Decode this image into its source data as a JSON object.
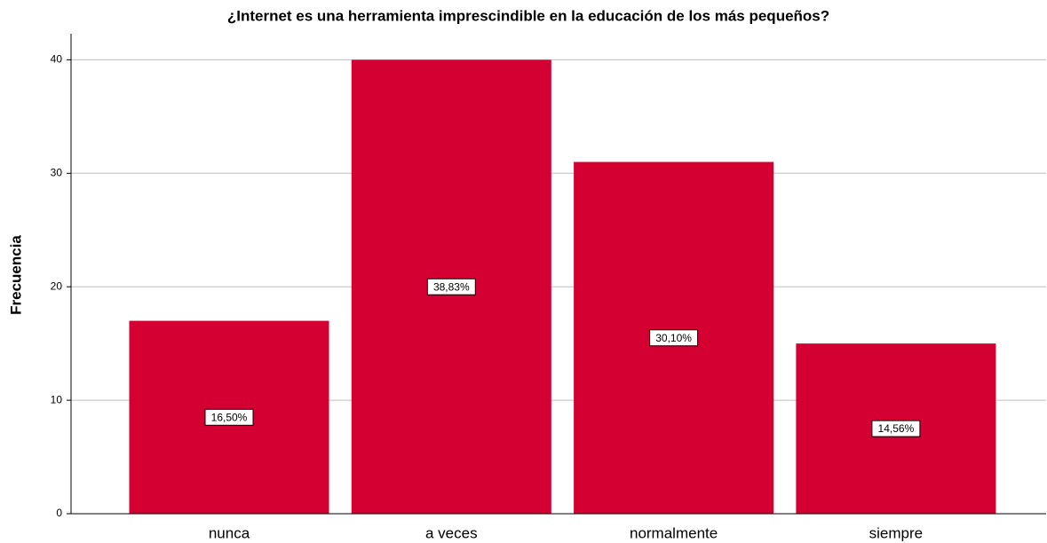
{
  "chart_data": {
    "type": "bar",
    "title": "¿Internet es una herramienta imprescindible en la educación de los más pequeños?",
    "y_label": "Frecuencia",
    "categories": [
      "nunca",
      "a veces",
      "normalmente",
      "siempre"
    ],
    "values": [
      17,
      40,
      31,
      15
    ],
    "percent_labels": [
      {
        "value": 16.5,
        "label": "16,50%"
      },
      {
        "value": 38.83,
        "label": "38,83%"
      },
      {
        "value": 30.1,
        "label": "30,10%"
      },
      {
        "value": 14.56,
        "label": "14,56%"
      }
    ],
    "color": "#d50032",
    "ylim": [
      0,
      42.3
    ],
    "yticks": [
      0,
      10,
      20,
      30,
      40
    ],
    "grid": true
  }
}
